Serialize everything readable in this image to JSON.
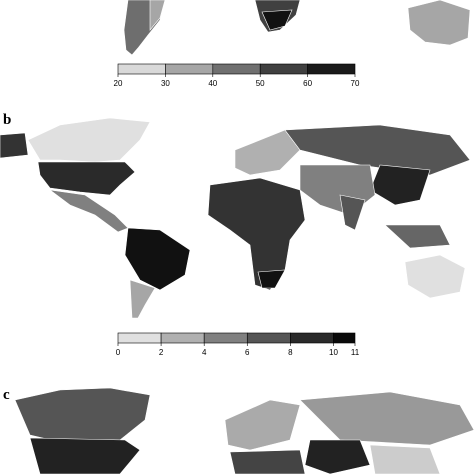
{
  "panels": [
    {
      "legend": {
        "ticks": [
          20,
          30,
          40,
          50,
          60,
          70
        ],
        "colors": [
          "#d9d9d9",
          "#a6a6a6",
          "#707070",
          "#404040",
          "#1a1a1a"
        ]
      }
    },
    {
      "label": "b",
      "legend": {
        "ticks": [
          0,
          2,
          4,
          6,
          8,
          10,
          11
        ],
        "colors": [
          "#e0e0e0",
          "#b0b0b0",
          "#808080",
          "#555555",
          "#2a2a2a",
          "#0a0a0a"
        ]
      }
    },
    {
      "label": "c"
    }
  ]
}
